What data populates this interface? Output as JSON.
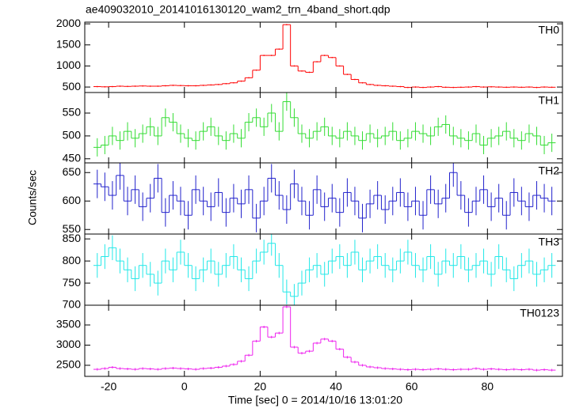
{
  "chart_data": {
    "type": "step",
    "title": "ae409032010_20141016130120_wam2_trn_4band_short.qdp",
    "y_label": "Counts/sec",
    "x_label": "Time [sec] 0 = 2014/10/16 13:01:20",
    "x": [
      -23,
      -21,
      -19,
      -17,
      -15,
      -13,
      -11,
      -9,
      -7,
      -5,
      -3,
      -1,
      1,
      3,
      5,
      7,
      9,
      11,
      13,
      15,
      17,
      19,
      21,
      23,
      25,
      27,
      29,
      31,
      33,
      35,
      37,
      39,
      41,
      43,
      45,
      47,
      49,
      51,
      53,
      55,
      57,
      59,
      61,
      63,
      65,
      67,
      69,
      71,
      73,
      75,
      77,
      79,
      81,
      83,
      85,
      87,
      89,
      91,
      93,
      95,
      97
    ],
    "xlim": [
      -26.3,
      99.8
    ],
    "xticks": [
      -20,
      0,
      20,
      40,
      60,
      80
    ],
    "panels": [
      {
        "name": "TH0",
        "color": "#ff0000",
        "error": 15,
        "ylim": [
          370,
          2040
        ],
        "yticks": [
          500,
          1000,
          1500,
          2000
        ],
        "values": [
          510,
          505,
          510,
          520,
          515,
          520,
          525,
          520,
          520,
          530,
          540,
          535,
          530,
          530,
          540,
          550,
          560,
          580,
          600,
          640,
          720,
          900,
          1250,
          1250,
          1400,
          1980,
          1000,
          880,
          850,
          1100,
          1250,
          1200,
          1000,
          800,
          680,
          600,
          560,
          540,
          530,
          520,
          510,
          490,
          500,
          490,
          500,
          510,
          495,
          490,
          495,
          500,
          510,
          500,
          505,
          500,
          495,
          500,
          495,
          500,
          490,
          500,
          495
        ]
      },
      {
        "name": "TH1",
        "color": "#33dd33",
        "error": 20,
        "ylim": [
          441,
          595
        ],
        "yticks": [
          450,
          500,
          550
        ],
        "values": [
          475,
          480,
          500,
          490,
          510,
          495,
          505,
          520,
          500,
          540,
          530,
          505,
          495,
          490,
          510,
          520,
          500,
          490,
          505,
          495,
          530,
          540,
          520,
          550,
          510,
          575,
          540,
          505,
          495,
          510,
          520,
          500,
          495,
          510,
          500,
          490,
          505,
          495,
          500,
          510,
          490,
          495,
          510,
          505,
          500,
          520,
          525,
          500,
          495,
          490,
          505,
          480,
          495,
          500,
          510,
          495,
          490,
          505,
          500,
          480,
          485
        ]
      },
      {
        "name": "TH2",
        "color": "#2222cc",
        "error": 25,
        "ylim": [
          542,
          667
        ],
        "yticks": [
          550,
          600,
          650
        ],
        "values": [
          630,
          625,
          610,
          645,
          600,
          620,
          590,
          605,
          640,
          580,
          610,
          600,
          575,
          620,
          600,
          590,
          615,
          580,
          605,
          595,
          620,
          570,
          600,
          640,
          610,
          585,
          630,
          600,
          575,
          620,
          590,
          605,
          580,
          615,
          600,
          570,
          595,
          610,
          585,
          600,
          615,
          590,
          600,
          575,
          620,
          595,
          605,
          650,
          610,
          580,
          600,
          620,
          590,
          605,
          575,
          615,
          600,
          590,
          610,
          605,
          600
        ]
      },
      {
        "name": "TH3",
        "color": "#22e8e8",
        "error": 28,
        "ylim": [
          700,
          861
        ],
        "yticks": [
          700,
          750,
          800,
          850
        ],
        "values": [
          790,
          810,
          830,
          800,
          780,
          760,
          790,
          770,
          750,
          800,
          780,
          820,
          790,
          760,
          780,
          800,
          770,
          790,
          810,
          780,
          760,
          800,
          820,
          840,
          790,
          730,
          720,
          750,
          780,
          790,
          770,
          800,
          810,
          790,
          820,
          780,
          800,
          810,
          790,
          780,
          800,
          820,
          790,
          780,
          810,
          770,
          800,
          790,
          810,
          780,
          790,
          800,
          770,
          810,
          780,
          760,
          790,
          800,
          770,
          780,
          790
        ]
      },
      {
        "name": "TH0123",
        "color": "#ee22ee",
        "error": 30,
        "ylim": [
          2225,
          3990
        ],
        "yticks": [
          2500,
          3000,
          3500
        ],
        "values": [
          2400,
          2420,
          2450,
          2420,
          2410,
          2400,
          2420,
          2410,
          2400,
          2420,
          2430,
          2420,
          2410,
          2400,
          2420,
          2430,
          2450,
          2480,
          2520,
          2600,
          2750,
          3100,
          3450,
          3200,
          3300,
          3950,
          2950,
          2800,
          2850,
          3050,
          3150,
          3100,
          2900,
          2700,
          2580,
          2500,
          2460,
          2440,
          2420,
          2410,
          2400,
          2390,
          2400,
          2390,
          2400,
          2410,
          2400,
          2390,
          2400,
          2400,
          2420,
          2400,
          2410,
          2400,
          2390,
          2400,
          2390,
          2400,
          2380,
          2390,
          2380
        ]
      }
    ]
  }
}
